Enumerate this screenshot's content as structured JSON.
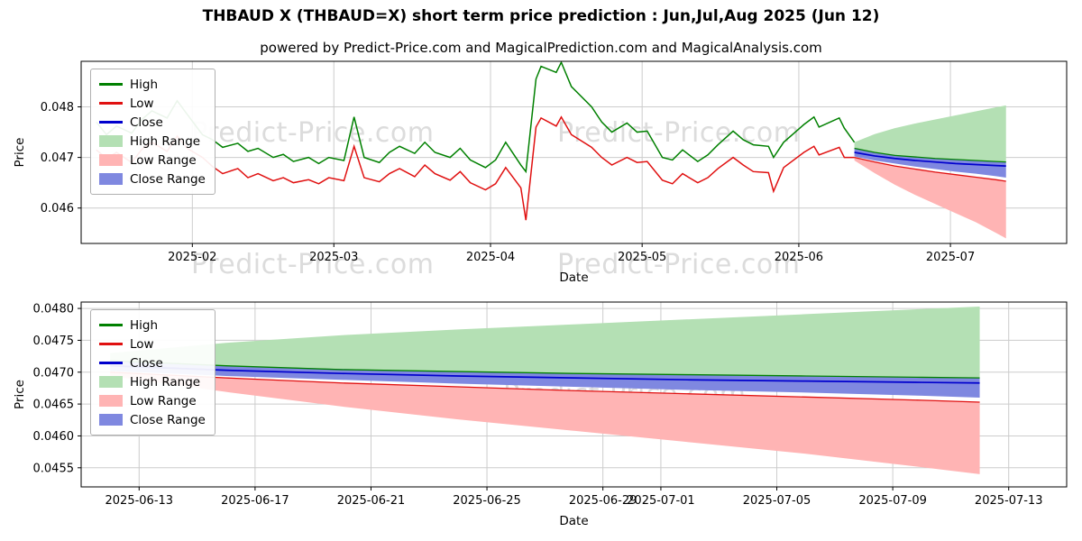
{
  "page": {
    "title": "THBAUD X (THBAUD=X) short term price prediction : Jun,Jul,Aug 2025 (Jun 12)",
    "subtitle": "powered by Predict-Price.com and MagicalPrediction.com and MagicalAnalysis.com",
    "watermark_text": "Predict-Price.com",
    "background": "#ffffff"
  },
  "colors": {
    "high": "#008000",
    "low": "#e01010",
    "close": "#0000cd",
    "high_range": "#b4e0b4",
    "low_range": "#ffb4b4",
    "close_range": "#7f88e0",
    "grid": "#cccccc",
    "axis": "#000000",
    "watermark": "#dcdcdc"
  },
  "forecast": {
    "dates": [
      "2025-06-12",
      "2025-06-16",
      "2025-06-20",
      "2025-06-24",
      "2025-06-28",
      "2025-07-02",
      "2025-07-06",
      "2025-07-10",
      "2025-07-12"
    ],
    "close": [
      0.0471,
      0.04703,
      0.04698,
      0.04694,
      0.04691,
      0.04688,
      0.04686,
      0.04684,
      0.04683
    ],
    "close_upper": [
      0.04718,
      0.0471,
      0.04705,
      0.04701,
      0.04698,
      0.04696,
      0.04694,
      0.04692,
      0.04691
    ],
    "close_lower": [
      0.04702,
      0.04694,
      0.04688,
      0.04682,
      0.04677,
      0.04672,
      0.04668,
      0.04663,
      0.0466
    ],
    "high_upper": [
      0.0473,
      0.04746,
      0.04758,
      0.04767,
      0.04775,
      0.04783,
      0.04791,
      0.04799,
      0.04803
    ],
    "high_lower": [
      0.04718,
      0.0471,
      0.04704,
      0.04701,
      0.04698,
      0.04696,
      0.04694,
      0.04692,
      0.04691
    ],
    "low_upper": [
      0.047,
      0.04691,
      0.04683,
      0.04677,
      0.04671,
      0.04666,
      0.04661,
      0.04656,
      0.04653
    ],
    "low_lower": [
      0.04694,
      0.04669,
      0.04646,
      0.04626,
      0.04608,
      0.0459,
      0.04572,
      0.04551,
      0.0454
    ]
  },
  "chart_data": [
    {
      "type": "line",
      "name": "history-and-forecast",
      "xlabel": "Date",
      "ylabel": "Price",
      "x_domain": [
        "2025-01-10",
        "2025-07-24"
      ],
      "y_domain": [
        0.0453,
        0.0489
      ],
      "x_ticks": [
        {
          "t": "2025-02-01",
          "label": "2025-02"
        },
        {
          "t": "2025-03-01",
          "label": "2025-03"
        },
        {
          "t": "2025-04-01",
          "label": "2025-04"
        },
        {
          "t": "2025-05-01",
          "label": "2025-05"
        },
        {
          "t": "2025-06-01",
          "label": "2025-06"
        },
        {
          "t": "2025-07-01",
          "label": "2025-07"
        }
      ],
      "y_ticks": [
        {
          "v": 0.046,
          "label": "0.046"
        },
        {
          "v": 0.047,
          "label": "0.047"
        },
        {
          "v": 0.048,
          "label": "0.048"
        }
      ],
      "legend": [
        {
          "label": "High",
          "swatch": "line",
          "color_key": "high"
        },
        {
          "label": "Low",
          "swatch": "line",
          "color_key": "low"
        },
        {
          "label": "Close",
          "swatch": "line",
          "color_key": "close"
        },
        {
          "label": "High Range",
          "swatch": "patch",
          "color_key": "high_range"
        },
        {
          "label": "Low Range",
          "swatch": "patch",
          "color_key": "low_range"
        },
        {
          "label": "Close Range",
          "swatch": "patch",
          "color_key": "close_range"
        }
      ],
      "history": {
        "dates": [
          "2025-01-13",
          "2025-01-15",
          "2025-01-17",
          "2025-01-20",
          "2025-01-22",
          "2025-01-24",
          "2025-01-27",
          "2025-01-29",
          "2025-01-31",
          "2025-02-03",
          "2025-02-05",
          "2025-02-07",
          "2025-02-10",
          "2025-02-12",
          "2025-02-14",
          "2025-02-17",
          "2025-02-19",
          "2025-02-21",
          "2025-02-24",
          "2025-02-26",
          "2025-02-28",
          "2025-03-03",
          "2025-03-05",
          "2025-03-07",
          "2025-03-10",
          "2025-03-12",
          "2025-03-14",
          "2025-03-17",
          "2025-03-19",
          "2025-03-21",
          "2025-03-24",
          "2025-03-26",
          "2025-03-28",
          "2025-03-31",
          "2025-04-02",
          "2025-04-04",
          "2025-04-07",
          "2025-04-08",
          "2025-04-10",
          "2025-04-11",
          "2025-04-14",
          "2025-04-15",
          "2025-04-17",
          "2025-04-21",
          "2025-04-23",
          "2025-04-25",
          "2025-04-28",
          "2025-04-30",
          "2025-05-02",
          "2025-05-05",
          "2025-05-07",
          "2025-05-09",
          "2025-05-12",
          "2025-05-14",
          "2025-05-16",
          "2025-05-19",
          "2025-05-21",
          "2025-05-23",
          "2025-05-26",
          "2025-05-27",
          "2025-05-29",
          "2025-06-02",
          "2025-06-04",
          "2025-06-05",
          "2025-06-09",
          "2025-06-10",
          "2025-06-12"
        ],
        "high": [
          0.0477,
          0.04745,
          0.04762,
          0.04748,
          0.04775,
          0.04792,
          0.04778,
          0.04812,
          0.04785,
          0.04745,
          0.04735,
          0.0472,
          0.04728,
          0.04712,
          0.04718,
          0.047,
          0.04706,
          0.04692,
          0.047,
          0.04688,
          0.047,
          0.04694,
          0.0478,
          0.047,
          0.0469,
          0.0471,
          0.04722,
          0.04708,
          0.0473,
          0.0471,
          0.047,
          0.04718,
          0.04695,
          0.0468,
          0.04695,
          0.0473,
          0.04685,
          0.04672,
          0.04855,
          0.0488,
          0.04868,
          0.04888,
          0.0484,
          0.048,
          0.0477,
          0.0475,
          0.04768,
          0.0475,
          0.04752,
          0.047,
          0.04695,
          0.04715,
          0.04692,
          0.04705,
          0.04725,
          0.04752,
          0.04735,
          0.04725,
          0.04722,
          0.047,
          0.0473,
          0.04765,
          0.0478,
          0.0476,
          0.04778,
          0.04758,
          0.0473
        ],
        "low": [
          0.04715,
          0.04698,
          0.0471,
          0.0469,
          0.04716,
          0.0473,
          0.04712,
          0.04742,
          0.04718,
          0.047,
          0.04682,
          0.04668,
          0.04678,
          0.0466,
          0.04668,
          0.04654,
          0.0466,
          0.0465,
          0.04656,
          0.04648,
          0.0466,
          0.04654,
          0.04722,
          0.0466,
          0.04652,
          0.04668,
          0.04678,
          0.04662,
          0.04685,
          0.04668,
          0.04655,
          0.04672,
          0.0465,
          0.04636,
          0.04648,
          0.0468,
          0.0464,
          0.04576,
          0.0476,
          0.04778,
          0.04762,
          0.0478,
          0.04745,
          0.0472,
          0.047,
          0.04685,
          0.047,
          0.0469,
          0.04692,
          0.04655,
          0.04648,
          0.04668,
          0.0465,
          0.0466,
          0.04678,
          0.047,
          0.04685,
          0.04672,
          0.0467,
          0.04633,
          0.0468,
          0.0471,
          0.04722,
          0.04705,
          0.0472,
          0.047,
          0.047
        ]
      }
    },
    {
      "type": "line",
      "name": "forecast-zoom",
      "xlabel": "Date",
      "ylabel": "Price",
      "x_domain": [
        "2025-06-11",
        "2025-07-15"
      ],
      "y_domain": [
        0.0452,
        0.0481
      ],
      "x_ticks": [
        {
          "t": "2025-06-13",
          "label": "2025-06-13"
        },
        {
          "t": "2025-06-17",
          "label": "2025-06-17"
        },
        {
          "t": "2025-06-21",
          "label": "2025-06-21"
        },
        {
          "t": "2025-06-25",
          "label": "2025-06-25"
        },
        {
          "t": "2025-06-29",
          "label": "2025-06-29"
        },
        {
          "t": "2025-07-01",
          "label": "2025-07-01"
        },
        {
          "t": "2025-07-05",
          "label": "2025-07-05"
        },
        {
          "t": "2025-07-09",
          "label": "2025-07-09"
        },
        {
          "t": "2025-07-13",
          "label": "2025-07-13"
        }
      ],
      "y_ticks": [
        {
          "v": 0.0455,
          "label": "0.0455"
        },
        {
          "v": 0.046,
          "label": "0.0460"
        },
        {
          "v": 0.0465,
          "label": "0.0465"
        },
        {
          "v": 0.047,
          "label": "0.0470"
        },
        {
          "v": 0.0475,
          "label": "0.0475"
        },
        {
          "v": 0.048,
          "label": "0.0480"
        }
      ],
      "legend": [
        {
          "label": "High",
          "swatch": "line",
          "color_key": "high"
        },
        {
          "label": "Low",
          "swatch": "line",
          "color_key": "low"
        },
        {
          "label": "Close",
          "swatch": "line",
          "color_key": "close"
        },
        {
          "label": "High Range",
          "swatch": "patch",
          "color_key": "high_range"
        },
        {
          "label": "Low Range",
          "swatch": "patch",
          "color_key": "low_range"
        },
        {
          "label": "Close Range",
          "swatch": "patch",
          "color_key": "close_range"
        }
      ]
    }
  ]
}
